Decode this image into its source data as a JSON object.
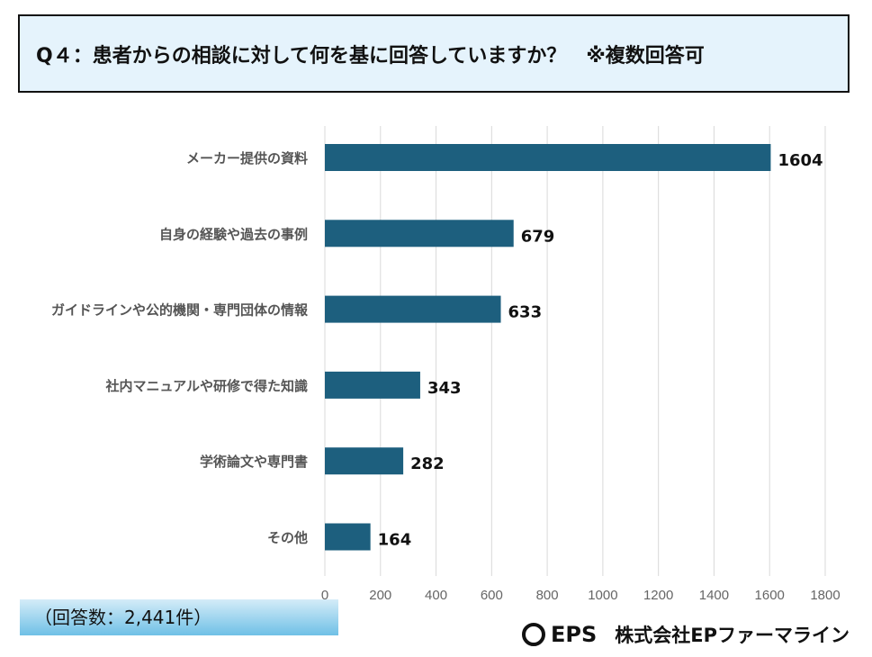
{
  "title": "Q４：患者からの相談に対して何を基に回答していますか？　※複数回答可",
  "response_count": "（回答数：2,441件）",
  "logo": {
    "mark": "EPS",
    "company": "株式会社EPファーマライン"
  },
  "colors": {
    "bar": "#1d5f7e",
    "grid": "#d9d9d9"
  },
  "chart_data": {
    "type": "bar",
    "orientation": "horizontal",
    "categories": [
      "メーカー提供の資料",
      "自身の経験や過去の事例",
      "ガイドラインや公的機関・専門団体の情報",
      "社内マニュアルや研修で得た知識",
      "学術論文や専門書",
      "その他"
    ],
    "values": [
      1604,
      679,
      633,
      343,
      282,
      164
    ],
    "xlim": [
      0,
      1800
    ],
    "xticks": [
      0,
      200,
      400,
      600,
      800,
      1000,
      1200,
      1400,
      1600,
      1800
    ],
    "grid": true
  }
}
